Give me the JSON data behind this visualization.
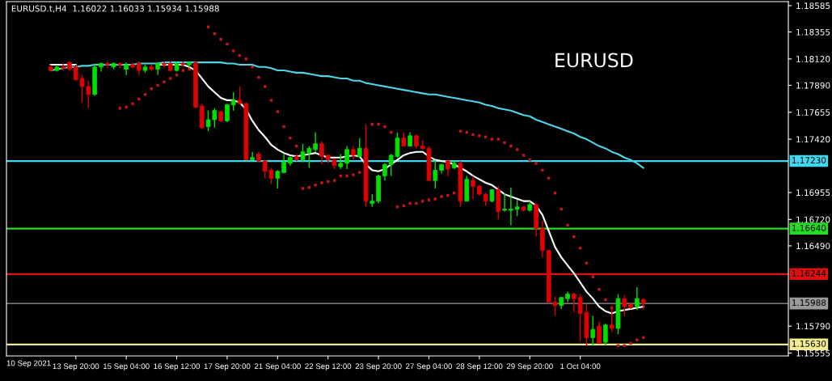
{
  "chart_data": {
    "type": "candlestick",
    "title": "EURUSD.t,H4  1.16022 1.16033 1.15934 1.15988",
    "annotations": [
      "EURUSD",
      "10 Sep 2021"
    ],
    "categories": [
      null,
      null,
      null,
      null,
      "13 Sep 20:00",
      null,
      null,
      null,
      null,
      null,
      null,
      null,
      "15 Sep 04:00",
      null,
      null,
      null,
      null,
      null,
      null,
      null,
      "16 Sep 12:00",
      null,
      null,
      null,
      null,
      null,
      null,
      null,
      "17 Sep 20:00",
      null,
      null,
      null,
      null,
      null,
      null,
      null,
      "21 Sep 04:00",
      null,
      null,
      null,
      null,
      null,
      null,
      null,
      "22 Sep 12:00",
      null,
      null,
      null,
      null,
      null,
      null,
      null,
      "23 Sep 20:00",
      null,
      null,
      null,
      null,
      null,
      null,
      null,
      "27 Sep 04:00",
      null,
      null,
      null,
      null,
      null,
      null,
      null,
      "28 Sep 12:00",
      null,
      null,
      null,
      null,
      null,
      null,
      null,
      "29 Sep 20:00",
      null,
      null,
      null,
      null,
      null,
      null,
      null,
      "1 Oct 04:00",
      null,
      null,
      null,
      null,
      null,
      null,
      null,
      null,
      null,
      null
    ],
    "ohlc": [
      [
        1.1805,
        1.1807,
        1.1801,
        1.1802
      ],
      [
        1.1802,
        1.1807,
        1.1801,
        1.1805
      ],
      [
        1.1805,
        1.1808,
        1.1802,
        1.1804
      ],
      [
        1.1809,
        1.181,
        1.1801,
        1.1803
      ],
      [
        1.1805,
        1.1807,
        1.1793,
        1.1794
      ],
      [
        1.1795,
        1.1798,
        1.1774,
        1.1788
      ],
      [
        1.1788,
        1.1793,
        1.1769,
        1.1781
      ],
      [
        1.1781,
        1.1808,
        1.178,
        1.1805
      ],
      [
        1.1805,
        1.1809,
        1.1801,
        1.1808
      ],
      [
        1.1808,
        1.181,
        1.1804,
        1.1807
      ],
      [
        1.1805,
        1.1809,
        1.1803,
        1.1808
      ],
      [
        1.1808,
        1.1809,
        1.1804,
        1.1807
      ],
      [
        1.1803,
        1.1809,
        1.1798,
        1.1807
      ],
      [
        1.1807,
        1.1809,
        1.1804,
        1.1805
      ],
      [
        1.1808,
        1.181,
        1.1798,
        1.1802
      ],
      [
        1.1802,
        1.1807,
        1.18,
        1.1805
      ],
      [
        1.1805,
        1.1807,
        1.1802,
        1.1803
      ],
      [
        1.1803,
        1.1809,
        1.1798,
        1.1808
      ],
      [
        1.1808,
        1.181,
        1.1804,
        1.1807
      ],
      [
        1.1808,
        1.181,
        1.1801,
        1.1802
      ],
      [
        1.1802,
        1.1809,
        1.1801,
        1.1808
      ],
      [
        1.1808,
        1.181,
        1.1805,
        1.1807
      ],
      [
        1.1807,
        1.181,
        1.1804,
        1.1809
      ],
      [
        1.1809,
        1.181,
        1.1769,
        1.177
      ],
      [
        1.1771,
        1.1773,
        1.1751,
        1.1752
      ],
      [
        1.1753,
        1.1767,
        1.1749,
        1.1759
      ],
      [
        1.1759,
        1.1769,
        1.1752,
        1.1767
      ],
      [
        1.1766,
        1.1767,
        1.1757,
        1.1758
      ],
      [
        1.1758,
        1.1773,
        1.1757,
        1.1772
      ],
      [
        1.1772,
        1.1783,
        1.1767,
        1.1776
      ],
      [
        1.1776,
        1.1788,
        1.1773,
        1.1773
      ],
      [
        1.1773,
        1.1774,
        1.1724,
        1.1724
      ],
      [
        1.1724,
        1.1731,
        1.1724,
        1.1726
      ],
      [
        1.1729,
        1.1731,
        1.1722,
        1.1723
      ],
      [
        1.1723,
        1.1724,
        1.1708,
        1.1714
      ],
      [
        1.1715,
        1.1717,
        1.1703,
        1.1708
      ],
      [
        1.1708,
        1.1715,
        1.1699,
        1.1714
      ],
      [
        1.1713,
        1.1729,
        1.1712,
        1.1722
      ],
      [
        1.1721,
        1.1727,
        1.1719,
        1.1726
      ],
      [
        1.1727,
        1.1729,
        1.1723,
        1.1724
      ],
      [
        1.1724,
        1.1738,
        1.1722,
        1.1731
      ],
      [
        1.173,
        1.1736,
        1.1717,
        1.1734
      ],
      [
        1.1733,
        1.1748,
        1.1731,
        1.1738
      ],
      [
        1.1738,
        1.174,
        1.172,
        1.1727
      ],
      [
        1.1728,
        1.1729,
        1.1721,
        1.1724
      ],
      [
        1.1724,
        1.1725,
        1.1716,
        1.1719
      ],
      [
        1.1718,
        1.1729,
        1.1716,
        1.1721
      ],
      [
        1.1721,
        1.1736,
        1.1716,
        1.1733
      ],
      [
        1.1733,
        1.1736,
        1.1724,
        1.1728
      ],
      [
        1.1727,
        1.1743,
        1.1726,
        1.1734
      ],
      [
        1.1734,
        1.1755,
        1.1683,
        1.1688
      ],
      [
        1.1686,
        1.1694,
        1.1683,
        1.1688
      ],
      [
        1.1688,
        1.1711,
        1.1686,
        1.171
      ],
      [
        1.171,
        1.1721,
        1.1706,
        1.172
      ],
      [
        1.172,
        1.1729,
        1.171,
        1.1728
      ],
      [
        1.1727,
        1.1748,
        1.1726,
        1.1743
      ],
      [
        1.1743,
        1.1748,
        1.1736,
        1.1736
      ],
      [
        1.1736,
        1.1748,
        1.1736,
        1.1745
      ],
      [
        1.1745,
        1.1746,
        1.1734,
        1.1736
      ],
      [
        1.1736,
        1.1741,
        1.1733,
        1.1734
      ],
      [
        1.1734,
        1.1736,
        1.1706,
        1.1706
      ],
      [
        1.1706,
        1.1724,
        1.1699,
        1.1715
      ],
      [
        1.1715,
        1.172,
        1.1712,
        1.172
      ],
      [
        1.1723,
        1.1724,
        1.171,
        1.1716
      ],
      [
        1.1717,
        1.1724,
        1.1716,
        1.1721
      ],
      [
        1.1721,
        1.1723,
        1.1683,
        1.1688
      ],
      [
        1.1688,
        1.171,
        1.1688,
        1.1707
      ],
      [
        1.1706,
        1.171,
        1.169,
        1.1701
      ],
      [
        1.1701,
        1.1702,
        1.1693,
        1.1694
      ],
      [
        1.1694,
        1.1695,
        1.1684,
        1.1688
      ],
      [
        1.1688,
        1.1698,
        1.1687,
        1.1698
      ],
      [
        1.1698,
        1.1701,
        1.1672,
        1.1679
      ],
      [
        1.168,
        1.1695,
        1.1679,
        1.1681
      ],
      [
        1.168,
        1.17,
        1.1667,
        1.1681
      ],
      [
        1.1681,
        1.1689,
        1.1675,
        1.1683
      ],
      [
        1.1683,
        1.1683,
        1.1679,
        1.168
      ],
      [
        1.168,
        1.1688,
        1.1679,
        1.1685
      ],
      [
        1.1685,
        1.1686,
        1.1657,
        1.1664
      ],
      [
        1.1664,
        1.1671,
        1.1639,
        1.1645
      ],
      [
        1.1645,
        1.1645,
        1.1599,
        1.16
      ],
      [
        1.16,
        1.1605,
        1.1588,
        1.1597
      ],
      [
        1.1597,
        1.1604,
        1.1594,
        1.1604
      ],
      [
        1.1603,
        1.1609,
        1.16,
        1.1607
      ],
      [
        1.1607,
        1.1608,
        1.1591,
        1.1603
      ],
      [
        1.1604,
        1.1607,
        1.1566,
        1.159
      ],
      [
        1.1591,
        1.1598,
        1.1562,
        1.1569
      ],
      [
        1.1569,
        1.1588,
        1.1562,
        1.1576
      ],
      [
        1.1579,
        1.1583,
        1.1564,
        1.1564
      ],
      [
        1.1565,
        1.1581,
        1.1562,
        1.158
      ],
      [
        1.158,
        1.1595,
        1.1574,
        1.1577
      ],
      [
        1.1577,
        1.1607,
        1.1572,
        1.1603
      ],
      [
        1.1603,
        1.1606,
        1.1588,
        1.1596
      ],
      [
        1.1598,
        1.1599,
        1.1594,
        1.1595
      ],
      [
        1.1596,
        1.1613,
        1.1593,
        1.1603
      ],
      [
        1.16022,
        1.16033,
        1.15934,
        1.15988
      ]
    ],
    "colors": [
      "#e00000",
      "#00e000",
      "#e00000",
      "#e00000",
      "#e00000",
      "#e00000",
      "#e00000",
      "#00e000",
      "#00e000",
      "#e00000",
      "#00e000",
      "#e00000",
      "#00e000",
      "#e00000",
      "#e00000",
      "#00e000",
      "#e00000",
      "#00e000",
      "#e00000",
      "#e00000",
      "#00e000",
      "#e00000",
      "#00e000",
      "#e00000",
      "#e00000",
      "#00e000",
      "#00e000",
      "#e00000",
      "#00e000",
      "#00e000",
      "#e00000",
      "#e00000",
      "#00e000",
      "#e00000",
      "#e00000",
      "#e00000",
      "#00e000",
      "#00e000",
      "#00e000",
      "#e00000",
      "#00e000",
      "#00e000",
      "#00e000",
      "#e00000",
      "#e00000",
      "#e00000",
      "#00e000",
      "#00e000",
      "#e00000",
      "#00e000",
      "#e00000",
      "#00e000",
      "#00e000",
      "#00e000",
      "#00e000",
      "#00e000",
      "#e00000",
      "#00e000",
      "#e00000",
      "#e00000",
      "#e00000",
      "#00e000",
      "#00e000",
      "#e00000",
      "#00e000",
      "#e00000",
      "#00e000",
      "#e00000",
      "#e00000",
      "#e00000",
      "#00e000",
      "#e00000",
      "#00e000",
      "#00e000",
      "#00e000",
      "#e00000",
      "#00e000",
      "#e00000",
      "#e00000",
      "#e00000",
      "#e00000",
      "#00e000",
      "#00e000",
      "#e00000",
      "#e00000",
      "#e00000",
      "#00e000",
      "#e00000",
      "#00e000",
      "#e00000",
      "#00e000",
      "#e00000",
      "#e00000",
      "#00e000",
      "#e00000"
    ],
    "series": [
      {
        "type": "line",
        "color": "#ffffff",
        "values": [
          1.1807,
          1.1807,
          1.1807,
          1.1807,
          1.1807,
          null,
          null,
          null,
          null,
          null,
          null,
          null,
          null,
          null,
          null,
          null,
          null,
          1.1807,
          1.1807,
          1.1807,
          1.1807,
          1.1807,
          1.1805,
          1.1802,
          1.1795,
          1.1788,
          1.1783,
          1.1778,
          1.1776,
          1.1776,
          1.1774,
          1.1768,
          1.1758,
          1.175,
          1.1744,
          1.1737,
          1.1733,
          1.173,
          1.1728,
          1.1727,
          1.1728,
          1.1729,
          1.173,
          1.1728,
          1.1726,
          1.1726,
          1.1726,
          1.1727,
          1.1728,
          1.1727,
          1.172,
          1.1715,
          1.1714,
          1.1716,
          1.172,
          1.1724,
          1.1728,
          1.173,
          1.1731,
          1.1731,
          1.1727,
          1.1724,
          1.1723,
          1.1722,
          1.172,
          1.1717,
          1.1714,
          1.171,
          1.1707,
          1.1704,
          1.1702,
          1.1698,
          1.1694,
          1.1692,
          1.169,
          1.1688,
          1.1688,
          1.1684,
          1.1676,
          1.1662,
          1.1648,
          1.1639,
          1.1632,
          1.1625,
          1.1617,
          1.1609,
          1.1603,
          1.1596,
          1.1592,
          1.159,
          1.1592,
          1.1593,
          1.1594,
          1.1595,
          1.1596
        ]
      },
      {
        "type": "line",
        "color": "#4cd6e8",
        "values": [
          1.1802,
          1.1803,
          1.1804,
          1.1805,
          1.1805,
          1.1806,
          1.1806,
          1.1807,
          1.1807,
          1.1807,
          1.1807,
          1.1807,
          1.1807,
          1.1807,
          1.1808,
          1.1808,
          1.1808,
          1.1808,
          1.1809,
          1.1809,
          1.1809,
          1.1809,
          1.1809,
          1.1809,
          1.1809,
          1.1809,
          1.1809,
          1.1809,
          1.1808,
          1.1808,
          1.1807,
          1.1807,
          1.1807,
          1.1805,
          1.1805,
          1.1804,
          1.1802,
          1.1802,
          1.1801,
          1.18,
          1.18,
          1.1799,
          1.1798,
          1.1797,
          1.1797,
          1.1796,
          1.1795,
          1.1795,
          1.1793,
          1.1793,
          1.1791,
          1.179,
          1.1789,
          1.1788,
          1.1787,
          1.1786,
          1.1785,
          1.1784,
          1.1783,
          1.1782,
          1.1781,
          1.1781,
          1.178,
          1.1779,
          1.1778,
          1.1777,
          1.1776,
          1.1775,
          1.1774,
          1.1772,
          1.1771,
          1.1769,
          1.1768,
          1.1767,
          1.1765,
          1.1763,
          1.1762,
          1.1759,
          1.1757,
          1.1755,
          1.1753,
          1.1751,
          1.1749,
          1.1747,
          1.1744,
          1.1742,
          1.1739,
          1.1736,
          1.1734,
          1.1731,
          1.1729,
          1.1726,
          1.1724,
          1.1721,
          1.1717
        ]
      },
      {
        "type": "scatter",
        "color": "#c81414",
        "marker": "square",
        "values": [
          null,
          null,
          null,
          null,
          null,
          null,
          null,
          null,
          null,
          null,
          null,
          1.1769,
          1.177,
          1.1773,
          1.1777,
          1.1781,
          1.1786,
          1.1789,
          1.1792,
          1.1795,
          1.1798,
          1.1802,
          1.1803,
          null,
          null,
          1.184,
          1.1834,
          1.1829,
          1.1825,
          1.1819,
          1.1815,
          1.1812,
          1.1805,
          1.1796,
          1.1788,
          1.1776,
          1.1766,
          1.1753,
          1.1743,
          1.1736,
          1.1699,
          1.17,
          1.1702,
          1.1704,
          1.1705,
          1.1706,
          1.171,
          1.171,
          1.1711,
          1.1713,
          null,
          1.1755,
          1.1755,
          1.1753,
          1.1748,
          1.1683,
          1.1684,
          1.1686,
          1.1686,
          1.1688,
          1.1689,
          1.169,
          1.1692,
          1.1693,
          1.1695,
          1.1749,
          1.1748,
          1.1746,
          1.1745,
          1.1744,
          1.1742,
          1.1742,
          1.1739,
          1.1736,
          1.1733,
          1.1728,
          1.1724,
          1.1721,
          1.1715,
          1.1708,
          1.1695,
          1.1681,
          1.1667,
          1.1657,
          1.1647,
          1.1634,
          1.1622,
          1.1611,
          1.1602,
          1.1595,
          1.1562,
          1.1562,
          1.1564,
          1.1567,
          1.1569
        ]
      }
    ],
    "ylim": [
      1.1553,
      1.1862
    ],
    "yticks": [
      1.18585,
      1.18355,
      {
        "value": 1.1812,
        "label": "1.18120"
      },
      {
        "value": 1.1789,
        "label": "1.17890"
      },
      1.17655,
      {
        "value": 1.1742,
        "label": "1.17420"
      },
      1.16955,
      {
        "value": 1.1672,
        "label": "1.16720"
      },
      {
        "value": 1.1649,
        "label": "1.16490"
      },
      {
        "value": 1.1579,
        "label": "1.15790"
      },
      1.15555
    ],
    "ref_lines": [
      {
        "axis": "y",
        "value": 1.1723,
        "label": "1.17230",
        "color": "#40d8f0"
      },
      {
        "axis": "y",
        "value": 1.1664,
        "label": "1.16640",
        "color": "#22dd22"
      },
      {
        "axis": "y",
        "value": 1.16244,
        "label": "1.16244",
        "color": "#e01010"
      },
      {
        "axis": "y",
        "value": 1.15988,
        "label": "1.15988",
        "color": "#9a9a9a"
      },
      {
        "axis": "y",
        "value": 1.1563,
        "label": "1.15630",
        "color": "#f2ec90"
      }
    ],
    "grid": false,
    "legend": false
  }
}
